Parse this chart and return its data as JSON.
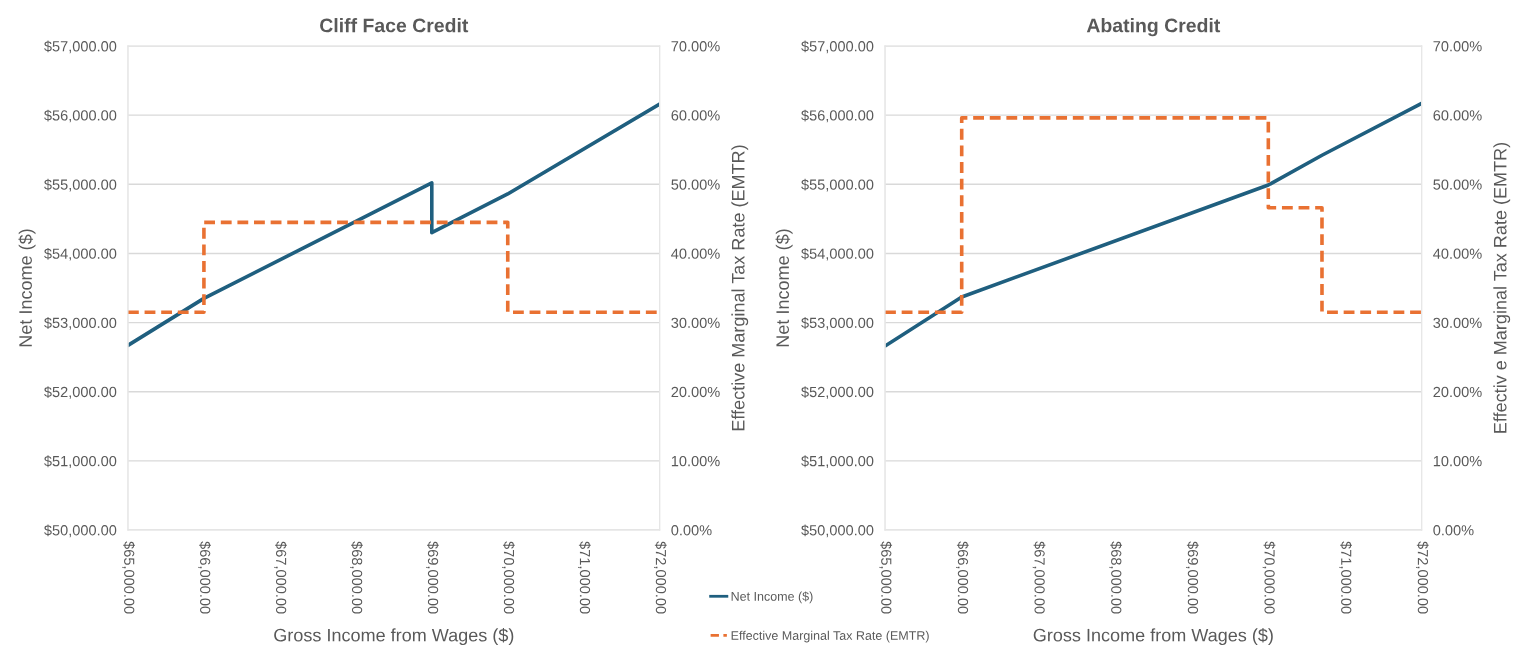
{
  "chart_data": [
    {
      "type": "line",
      "title": "Cliff Face Credit",
      "xlabel": "Gross Income from Wages ($)",
      "ylabel": "Net Income ($)",
      "y2label": "Effective Marginal Tax Rate (EMTR)",
      "xlim": [
        65000,
        72000
      ],
      "xticks": [
        {
          "value": 65000,
          "label": "$65,000.00"
        },
        {
          "value": 66000,
          "label": "$66,000.00"
        },
        {
          "value": 67000,
          "label": "$67,000.00"
        },
        {
          "value": 68000,
          "label": "$68,000.00"
        },
        {
          "value": 69000,
          "label": "$69,000.00"
        },
        {
          "value": 70000,
          "label": "$70,000.00"
        },
        {
          "value": 71000,
          "label": "$71,000.00"
        },
        {
          "value": 72000,
          "label": "$72,000.00"
        }
      ],
      "ylim": [
        50000,
        57000
      ],
      "yticks": [
        {
          "value": 50000,
          "label": "$50,000.00"
        },
        {
          "value": 51000,
          "label": "$51,000.00"
        },
        {
          "value": 52000,
          "label": "$52,000.00"
        },
        {
          "value": 53000,
          "label": "$53,000.00"
        },
        {
          "value": 54000,
          "label": "$54,000.00"
        },
        {
          "value": 55000,
          "label": "$55,000.00"
        },
        {
          "value": 56000,
          "label": "$56,000.00"
        },
        {
          "value": 57000,
          "label": "$57,000.00"
        }
      ],
      "y2lim": [
        0,
        70
      ],
      "y2ticks": [
        {
          "value": 0,
          "label": "0.00%"
        },
        {
          "value": 10,
          "label": "10.00%"
        },
        {
          "value": 20,
          "label": "20.00%"
        },
        {
          "value": 30,
          "label": "30.00%"
        },
        {
          "value": 40,
          "label": "40.00%"
        },
        {
          "value": 50,
          "label": "50.00%"
        },
        {
          "value": 60,
          "label": "60.00%"
        },
        {
          "value": 70,
          "label": "70.00%"
        }
      ],
      "grid": "y",
      "legend": "bottom right",
      "series": [
        {
          "name": "Net Income ($)",
          "color": "#1f5f7f",
          "line_style": "solid",
          "x": [
            65000,
            66000,
            69000,
            69000,
            70000,
            72000
          ],
          "values": [
            52670,
            53350,
            55020,
            54300,
            54860,
            56160
          ]
        },
        {
          "name": "Effective Marginal Tax Rate (EMTR)",
          "type": "step",
          "axis": "y2",
          "color": "#e97132",
          "line_style": "dashed",
          "x": [
            65000,
            66000,
            70000,
            72000
          ],
          "values": [
            31.5,
            44.5,
            31.5,
            31.5
          ]
        }
      ]
    },
    {
      "type": "line",
      "title": "Abating Credit",
      "xlabel": "Gross Income from Wages ($)",
      "ylabel": "Net Income ($)",
      "y2label": "Effectiv e Marginal Tax Rate (EMTR)",
      "xlim": [
        65000,
        72000
      ],
      "xticks": [
        {
          "value": 65000,
          "label": "$65,000.00"
        },
        {
          "value": 66000,
          "label": "$66,000.00"
        },
        {
          "value": 67000,
          "label": "$67,000.00"
        },
        {
          "value": 68000,
          "label": "$68,000.00"
        },
        {
          "value": 69000,
          "label": "$69,000.00"
        },
        {
          "value": 70000,
          "label": "$70,000.00"
        },
        {
          "value": 71000,
          "label": "$71,000.00"
        },
        {
          "value": 72000,
          "label": "$72,000.00"
        }
      ],
      "ylim": [
        50000,
        57000
      ],
      "yticks": [
        {
          "value": 50000,
          "label": "$50,000.00"
        },
        {
          "value": 51000,
          "label": "$51,000.00"
        },
        {
          "value": 52000,
          "label": "$52,000.00"
        },
        {
          "value": 53000,
          "label": "$53,000.00"
        },
        {
          "value": 54000,
          "label": "$54,000.00"
        },
        {
          "value": 55000,
          "label": "$55,000.00"
        },
        {
          "value": 56000,
          "label": "$56,000.00"
        },
        {
          "value": 57000,
          "label": "$57,000.00"
        }
      ],
      "y2lim": [
        0,
        70
      ],
      "y2ticks": [
        {
          "value": 0,
          "label": "0.00%"
        },
        {
          "value": 10,
          "label": "10.00%"
        },
        {
          "value": 20,
          "label": "20.00%"
        },
        {
          "value": 30,
          "label": "30.00%"
        },
        {
          "value": 40,
          "label": "40.00%"
        },
        {
          "value": 50,
          "label": "50.00%"
        },
        {
          "value": 60,
          "label": "60.00%"
        },
        {
          "value": 70,
          "label": "70.00%"
        }
      ],
      "grid": "y",
      "series": [
        {
          "color": "#1f5f7f",
          "line_style": "solid",
          "x": [
            65000,
            66000,
            70000,
            70700,
            72000
          ],
          "values": [
            52660,
            53370,
            54990,
            55420,
            56170
          ]
        },
        {
          "type": "step",
          "axis": "y2",
          "color": "#e97132",
          "line_style": "dashed",
          "x": [
            65000,
            66000,
            70000,
            70700,
            72000
          ],
          "values": [
            31.5,
            59.6,
            46.6,
            31.5,
            31.5
          ]
        }
      ]
    }
  ]
}
